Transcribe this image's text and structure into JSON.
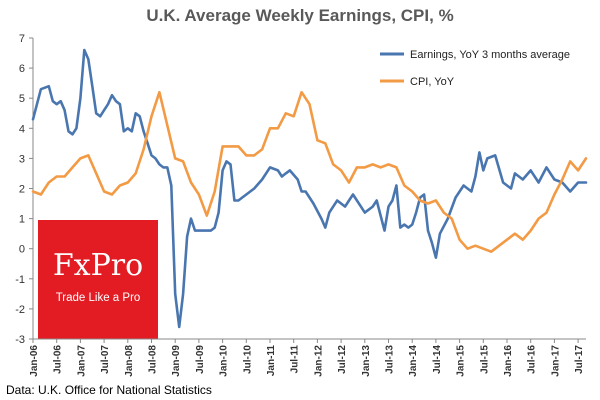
{
  "title": "U.K. Average Weekly Earnings, CPI, %",
  "source": "Data: U.K. Office for National Statistics",
  "logo": {
    "name": "FxPro",
    "tagline": "Trade Like a Pro",
    "color": "#e31b23"
  },
  "chart_data": {
    "type": "line",
    "title": "U.K. Average Weekly Earnings, CPI, %",
    "xlabel": "",
    "ylabel": "",
    "ylim": [
      -3,
      7
    ],
    "yticks": [
      -3,
      -2,
      -1,
      0,
      1,
      2,
      3,
      4,
      5,
      6,
      7
    ],
    "xlim": [
      "2006-01",
      "2017-09"
    ],
    "xticks": [
      "Jan-06",
      "Jul-06",
      "Jan-07",
      "Jul-07",
      "Jan-08",
      "Jul-08",
      "Jan-09",
      "Jul-09",
      "Jan-10",
      "Jul-10",
      "Jan-11",
      "Jul-11",
      "Jan-12",
      "Jul-12",
      "Jan-13",
      "Jul-13",
      "Jan-14",
      "Jul-14",
      "Jan-15",
      "Jul-15",
      "Jan-16",
      "Jul-16",
      "Jan-17",
      "Jul-17"
    ],
    "grid": false,
    "legend": "top-right",
    "series": [
      {
        "name": "Earnings,  YoY 3 months average",
        "color": "#4a76b0",
        "x": [
          "2006-01",
          "2006-03",
          "2006-05",
          "2006-06",
          "2006-07",
          "2006-08",
          "2006-09",
          "2006-10",
          "2006-11",
          "2006-12",
          "2007-01",
          "2007-02",
          "2007-03",
          "2007-04",
          "2007-05",
          "2007-06",
          "2007-07",
          "2007-08",
          "2007-09",
          "2007-10",
          "2007-11",
          "2007-12",
          "2008-01",
          "2008-02",
          "2008-03",
          "2008-04",
          "2008-05",
          "2008-06",
          "2008-07",
          "2008-08",
          "2008-09",
          "2008-10",
          "2008-11",
          "2008-12",
          "2009-01",
          "2009-02",
          "2009-03",
          "2009-04",
          "2009-05",
          "2009-06",
          "2009-07",
          "2009-08",
          "2009-09",
          "2009-10",
          "2009-11",
          "2009-12",
          "2010-01",
          "2010-02",
          "2010-03",
          "2010-04",
          "2010-05",
          "2010-06",
          "2010-07",
          "2010-09",
          "2010-11",
          "2011-01",
          "2011-03",
          "2011-04",
          "2011-05",
          "2011-06",
          "2011-08",
          "2011-09",
          "2011-10",
          "2011-12",
          "2012-02",
          "2012-03",
          "2012-04",
          "2012-05",
          "2012-06",
          "2012-08",
          "2012-09",
          "2012-10",
          "2012-12",
          "2013-01",
          "2013-02",
          "2013-03",
          "2013-04",
          "2013-06",
          "2013-07",
          "2013-08",
          "2013-09",
          "2013-10",
          "2013-11",
          "2013-12",
          "2014-01",
          "2014-02",
          "2014-03",
          "2014-04",
          "2014-05",
          "2014-06",
          "2014-07",
          "2014-08",
          "2014-10",
          "2014-12",
          "2015-02",
          "2015-04",
          "2015-05",
          "2015-06",
          "2015-07",
          "2015-08",
          "2015-10",
          "2015-12",
          "2016-02",
          "2016-03",
          "2016-05",
          "2016-07",
          "2016-09",
          "2016-11",
          "2017-01",
          "2017-03",
          "2017-05",
          "2017-07",
          "2017-09"
        ],
        "y": [
          4.3,
          5.3,
          5.4,
          4.9,
          4.8,
          4.9,
          4.6,
          3.9,
          3.8,
          4.0,
          5.0,
          6.6,
          6.3,
          5.4,
          4.5,
          4.4,
          4.6,
          4.8,
          5.1,
          4.9,
          4.8,
          3.9,
          4.0,
          3.9,
          4.5,
          4.4,
          3.9,
          3.5,
          3.1,
          3.0,
          2.8,
          2.7,
          2.7,
          2.1,
          -1.5,
          -2.6,
          -1.5,
          0.4,
          1.0,
          0.6,
          0.6,
          0.6,
          0.6,
          0.6,
          0.7,
          1.2,
          2.6,
          2.9,
          2.8,
          1.6,
          1.6,
          1.7,
          1.8,
          2.0,
          2.3,
          2.7,
          2.6,
          2.4,
          2.5,
          2.6,
          2.3,
          1.9,
          1.9,
          1.5,
          1.0,
          0.7,
          1.2,
          1.4,
          1.6,
          1.4,
          1.6,
          1.8,
          1.4,
          1.2,
          1.3,
          1.4,
          1.6,
          0.6,
          1.4,
          1.6,
          2.1,
          0.7,
          0.8,
          0.7,
          0.8,
          1.2,
          1.7,
          1.8,
          0.6,
          0.2,
          -0.3,
          0.5,
          1.0,
          1.7,
          2.1,
          1.9,
          2.4,
          3.2,
          2.6,
          3.0,
          3.1,
          2.2,
          2.0,
          2.5,
          2.3,
          2.6,
          2.2,
          2.7,
          2.3,
          2.2,
          1.9,
          2.2,
          2.2
        ]
      },
      {
        "name": "CPI, YoY",
        "color": "#f39a45",
        "x": [
          "2006-01",
          "2006-03",
          "2006-05",
          "2006-07",
          "2006-09",
          "2006-11",
          "2007-01",
          "2007-03",
          "2007-05",
          "2007-07",
          "2007-09",
          "2007-11",
          "2008-01",
          "2008-03",
          "2008-05",
          "2008-07",
          "2008-09",
          "2008-11",
          "2009-01",
          "2009-03",
          "2009-05",
          "2009-07",
          "2009-09",
          "2009-11",
          "2010-01",
          "2010-03",
          "2010-05",
          "2010-07",
          "2010-09",
          "2010-11",
          "2011-01",
          "2011-03",
          "2011-05",
          "2011-07",
          "2011-09",
          "2011-11",
          "2012-01",
          "2012-03",
          "2012-05",
          "2012-07",
          "2012-09",
          "2012-11",
          "2013-01",
          "2013-03",
          "2013-05",
          "2013-07",
          "2013-09",
          "2013-11",
          "2014-01",
          "2014-03",
          "2014-05",
          "2014-07",
          "2014-09",
          "2014-11",
          "2015-01",
          "2015-03",
          "2015-05",
          "2015-07",
          "2015-09",
          "2015-11",
          "2016-01",
          "2016-03",
          "2016-05",
          "2016-07",
          "2016-09",
          "2016-11",
          "2017-01",
          "2017-03",
          "2017-05",
          "2017-07",
          "2017-09"
        ],
        "y": [
          1.9,
          1.8,
          2.2,
          2.4,
          2.4,
          2.7,
          3.0,
          3.1,
          2.5,
          1.9,
          1.8,
          2.1,
          2.2,
          2.5,
          3.3,
          4.4,
          5.2,
          4.1,
          3.0,
          2.9,
          2.2,
          1.8,
          1.1,
          1.9,
          3.4,
          3.4,
          3.4,
          3.1,
          3.1,
          3.3,
          4.0,
          4.0,
          4.5,
          4.4,
          5.2,
          4.8,
          3.6,
          3.5,
          2.8,
          2.6,
          2.2,
          2.7,
          2.7,
          2.8,
          2.7,
          2.8,
          2.7,
          2.1,
          1.9,
          1.6,
          1.5,
          1.6,
          1.2,
          1.0,
          0.3,
          0.0,
          0.1,
          0.0,
          -0.1,
          0.1,
          0.3,
          0.5,
          0.3,
          0.6,
          1.0,
          1.2,
          1.8,
          2.3,
          2.9,
          2.6,
          3.0
        ]
      }
    ]
  }
}
